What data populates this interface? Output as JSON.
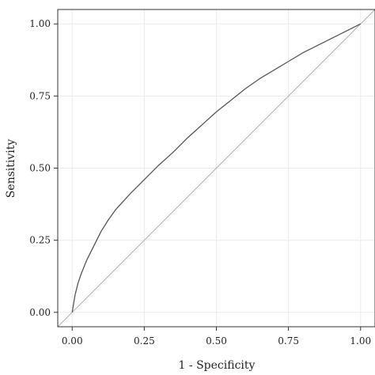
{
  "chart_data": {
    "type": "line",
    "xlabel": "1 - Specificity",
    "ylabel": "Sensitivity",
    "xlim": [
      -0.05,
      1.05
    ],
    "ylim": [
      -0.05,
      1.05
    ],
    "x_ticks": [
      0.0,
      0.25,
      0.5,
      0.75,
      1.0
    ],
    "y_ticks": [
      0.0,
      0.25,
      0.5,
      0.75,
      1.0
    ],
    "x_tick_labels": [
      "0.00",
      "0.25",
      "0.50",
      "0.75",
      "1.00"
    ],
    "y_tick_labels": [
      "0.00",
      "0.25",
      "0.50",
      "0.75",
      "1.00"
    ],
    "grid": true,
    "series": [
      {
        "x": [
          0.0,
          0.005,
          0.01,
          0.02,
          0.03,
          0.05,
          0.075,
          0.1,
          0.125,
          0.15,
          0.2,
          0.25,
          0.3,
          0.35,
          0.4,
          0.45,
          0.5,
          0.55,
          0.6,
          0.65,
          0.7,
          0.75,
          0.8,
          0.85,
          0.9,
          0.95,
          1.0
        ],
        "y": [
          0.0,
          0.03,
          0.06,
          0.1,
          0.13,
          0.18,
          0.23,
          0.28,
          0.32,
          0.355,
          0.41,
          0.46,
          0.51,
          0.555,
          0.605,
          0.65,
          0.695,
          0.735,
          0.775,
          0.81,
          0.84,
          0.87,
          0.9,
          0.925,
          0.95,
          0.975,
          1.0
        ],
        "color": "#555555"
      }
    ],
    "reference_line": {
      "x": [
        0,
        1
      ],
      "y": [
        0,
        1
      ],
      "color": "#b0b0b0"
    }
  }
}
